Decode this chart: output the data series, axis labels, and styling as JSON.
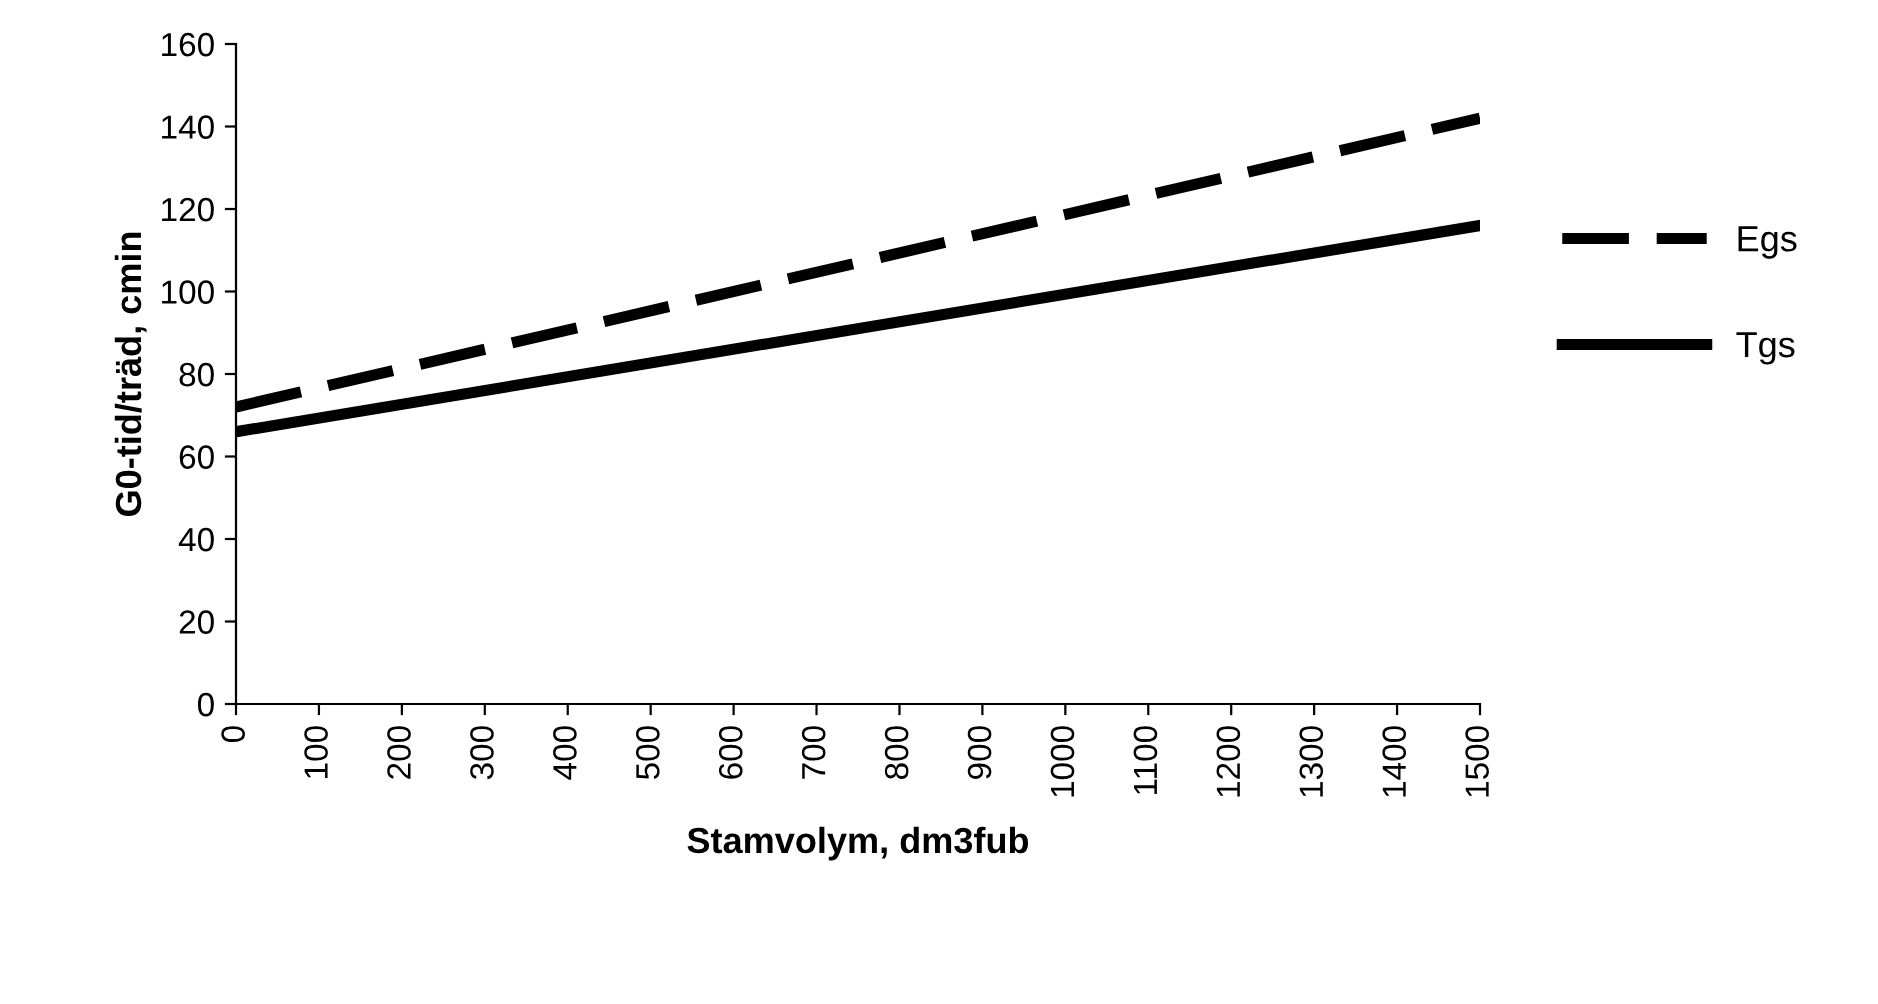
{
  "chart_data": {
    "type": "line",
    "xlabel": "Stamvolym, dm3fub",
    "ylabel": "G0-tid/träd, cmin",
    "x": [
      0,
      1500
    ],
    "series": [
      {
        "name": "Egs",
        "color": "#000000",
        "values": [
          72,
          142
        ],
        "line_style": "dashed"
      },
      {
        "name": "Tgs",
        "color": "#000000",
        "values": [
          66,
          116
        ],
        "line_style": "solid"
      }
    ],
    "xlim": [
      0,
      1500
    ],
    "xticks": [
      0,
      100,
      200,
      300,
      400,
      500,
      600,
      700,
      800,
      900,
      1000,
      1100,
      1200,
      1300,
      1400,
      1500
    ],
    "ylim": [
      0,
      160
    ],
    "yticks": [
      0,
      20,
      40,
      60,
      80,
      100,
      120,
      140,
      160
    ],
    "grid": false,
    "legend": "right",
    "marker": "none"
  }
}
